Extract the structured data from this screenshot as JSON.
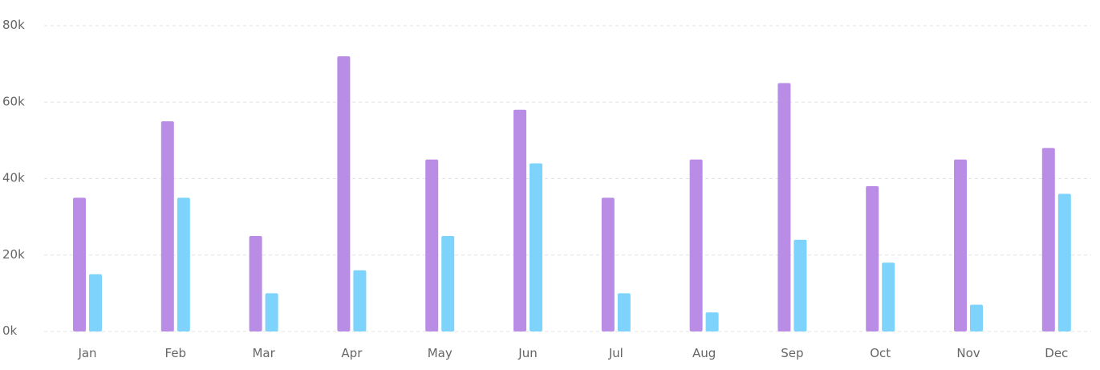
{
  "chart_data": {
    "type": "bar",
    "categories": [
      "Jan",
      "Feb",
      "Mar",
      "Apr",
      "May",
      "Jun",
      "Jul",
      "Aug",
      "Sep",
      "Oct",
      "Nov",
      "Dec"
    ],
    "series": [
      {
        "color": "#b98de6",
        "values": [
          35000,
          55000,
          25000,
          72000,
          45000,
          58000,
          35000,
          45000,
          65000,
          38000,
          45000,
          48000
        ]
      },
      {
        "color": "#7dd3fb",
        "values": [
          15000,
          35000,
          10000,
          16000,
          25000,
          44000,
          10000,
          5000,
          24000,
          18000,
          7000,
          36000
        ]
      }
    ],
    "ylim": [
      0,
      80000
    ],
    "yticks": [
      {
        "value": 0,
        "label": "0k"
      },
      {
        "value": 20000,
        "label": "20k"
      },
      {
        "value": 40000,
        "label": "40k"
      },
      {
        "value": 60000,
        "label": "60k"
      },
      {
        "value": 80000,
        "label": "80k"
      }
    ],
    "grid": true,
    "legend": "none",
    "title": "",
    "xlabel": "",
    "ylabel": ""
  }
}
